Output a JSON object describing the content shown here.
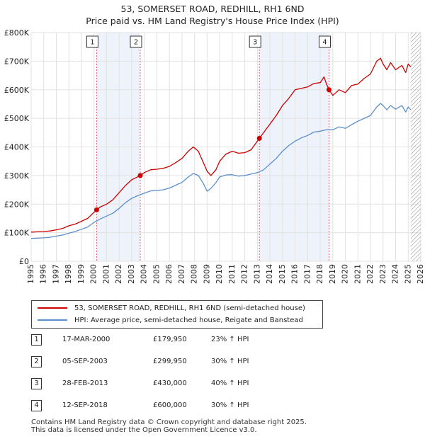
{
  "title": {
    "line1": "53, SOMERSET ROAD, REDHILL, RH1 6ND",
    "line2": "Price paid vs. HM Land Registry's House Price Index (HPI)"
  },
  "legend": {
    "property": "53, SOMERSET ROAD, REDHILL, RH1 6ND (semi-detached house)",
    "hpi": "HPI: Average price, semi-detached house, Reigate and Banstead"
  },
  "transactions": [
    {
      "num": "1",
      "date": "17-MAR-2000",
      "price": "£179,950",
      "hpi": "23% ↑ HPI"
    },
    {
      "num": "2",
      "date": "05-SEP-2003",
      "price": "£299,950",
      "hpi": "30% ↑ HPI"
    },
    {
      "num": "3",
      "date": "28-FEB-2013",
      "price": "£430,000",
      "hpi": "40% ↑ HPI"
    },
    {
      "num": "4",
      "date": "12-SEP-2018",
      "price": "£600,000",
      "hpi": "30% ↑ HPI"
    }
  ],
  "footer": {
    "line1": "Contains HM Land Registry data © Crown copyright and database right 2025.",
    "line2": "This data is licensed under the Open Government Licence v3.0."
  },
  "colors": {
    "property": "#cc0000",
    "hpi": "#5b8fc9",
    "shade": "#eef2fb",
    "marker_line": "#dd6677"
  },
  "chart_data": {
    "type": "line",
    "xlim": [
      1995,
      2026
    ],
    "ylim": [
      0,
      800000
    ],
    "x_ticks": [
      "1995",
      "1996",
      "1997",
      "1998",
      "1999",
      "2000",
      "2001",
      "2002",
      "2003",
      "2004",
      "2005",
      "2006",
      "2007",
      "2008",
      "2009",
      "2010",
      "2011",
      "2012",
      "2013",
      "2014",
      "2015",
      "2016",
      "2017",
      "2018",
      "2019",
      "2020",
      "2021",
      "2022",
      "2023",
      "2024",
      "2025",
      "2026"
    ],
    "y_ticks": [
      {
        "value": 0,
        "label": "£0"
      },
      {
        "value": 100000,
        "label": "£100K"
      },
      {
        "value": 200000,
        "label": "£200K"
      },
      {
        "value": 300000,
        "label": "£300K"
      },
      {
        "value": 400000,
        "label": "£400K"
      },
      {
        "value": 500000,
        "label": "£500K"
      },
      {
        "value": 600000,
        "label": "£600K"
      },
      {
        "value": 700000,
        "label": "£700K"
      },
      {
        "value": 800000,
        "label": "£800K"
      }
    ],
    "shaded_ranges": [
      [
        2000.21,
        2003.68
      ],
      [
        2013.16,
        2018.7
      ]
    ],
    "hatch_from": 2025.2,
    "series": [
      {
        "name": "53, SOMERSET ROAD, REDHILL, RH1 6ND (semi-detached house)",
        "x": [
          1995.0,
          1995.5,
          1996.0,
          1996.5,
          1997.0,
          1997.5,
          1998.0,
          1998.5,
          1999.0,
          1999.5,
          2000.21,
          2000.5,
          2001.0,
          2001.5,
          2002.0,
          2002.5,
          2003.0,
          2003.68,
          2004.0,
          2004.5,
          2005.0,
          2005.5,
          2006.0,
          2006.5,
          2007.0,
          2007.5,
          2007.9,
          2008.3,
          2008.7,
          2009.0,
          2009.3,
          2009.7,
          2010.0,
          2010.5,
          2011.0,
          2011.5,
          2012.0,
          2012.5,
          2013.16,
          2013.5,
          2014.0,
          2014.5,
          2015.0,
          2015.5,
          2016.0,
          2016.5,
          2017.0,
          2017.5,
          2018.0,
          2018.3,
          2018.5,
          2018.7,
          2019.0,
          2019.5,
          2020.0,
          2020.5,
          2021.0,
          2021.5,
          2022.0,
          2022.5,
          2022.8,
          2023.0,
          2023.3,
          2023.6,
          2024.0,
          2024.5,
          2024.8,
          2025.0,
          2025.2
        ],
        "values": [
          102000,
          103000,
          104000,
          106000,
          110000,
          115000,
          124000,
          130000,
          140000,
          150000,
          179950,
          190000,
          200000,
          215000,
          240000,
          265000,
          285000,
          299950,
          310000,
          320000,
          322000,
          325000,
          332000,
          345000,
          360000,
          385000,
          400000,
          385000,
          345000,
          315000,
          300000,
          320000,
          350000,
          375000,
          385000,
          378000,
          380000,
          390000,
          430000,
          450000,
          480000,
          510000,
          545000,
          570000,
          600000,
          605000,
          610000,
          622000,
          625000,
          645000,
          620000,
          600000,
          580000,
          600000,
          590000,
          615000,
          620000,
          640000,
          655000,
          700000,
          710000,
          690000,
          670000,
          695000,
          670000,
          685000,
          660000,
          690000,
          680000
        ]
      },
      {
        "name": "HPI: Average price, semi-detached house, Reigate and Banstead",
        "x": [
          1995.0,
          1995.5,
          1996.0,
          1996.5,
          1997.0,
          1997.5,
          1998.0,
          1998.5,
          1999.0,
          1999.5,
          2000.0,
          2000.5,
          2001.0,
          2001.5,
          2002.0,
          2002.5,
          2003.0,
          2003.5,
          2004.0,
          2004.5,
          2005.0,
          2005.5,
          2006.0,
          2006.5,
          2007.0,
          2007.5,
          2007.9,
          2008.3,
          2008.7,
          2009.0,
          2009.3,
          2009.7,
          2010.0,
          2010.5,
          2011.0,
          2011.5,
          2012.0,
          2012.5,
          2013.0,
          2013.5,
          2014.0,
          2014.5,
          2015.0,
          2015.5,
          2016.0,
          2016.5,
          2017.0,
          2017.5,
          2018.0,
          2018.5,
          2019.0,
          2019.5,
          2020.0,
          2020.5,
          2021.0,
          2021.5,
          2022.0,
          2022.5,
          2022.8,
          2023.0,
          2023.3,
          2023.6,
          2024.0,
          2024.5,
          2024.8,
          2025.0,
          2025.2
        ],
        "values": [
          80000,
          81000,
          82000,
          84000,
          88000,
          92000,
          98000,
          104000,
          112000,
          120000,
          136000,
          148000,
          158000,
          168000,
          185000,
          205000,
          220000,
          230000,
          238000,
          246000,
          248000,
          250000,
          256000,
          266000,
          276000,
          295000,
          307000,
          300000,
          272000,
          245000,
          255000,
          275000,
          295000,
          302000,
          303000,
          298000,
          300000,
          305000,
          310000,
          320000,
          340000,
          360000,
          385000,
          405000,
          420000,
          432000,
          440000,
          452000,
          455000,
          460000,
          460000,
          470000,
          465000,
          478000,
          490000,
          500000,
          510000,
          540000,
          552000,
          545000,
          530000,
          545000,
          532000,
          545000,
          522000,
          540000,
          530000
        ]
      }
    ],
    "markers": [
      {
        "label": "1",
        "x": 2000.21,
        "value": 179950
      },
      {
        "label": "2",
        "x": 2003.68,
        "value": 299950
      },
      {
        "label": "3",
        "x": 2013.16,
        "value": 430000
      },
      {
        "label": "4",
        "x": 2018.7,
        "value": 600000
      }
    ]
  }
}
